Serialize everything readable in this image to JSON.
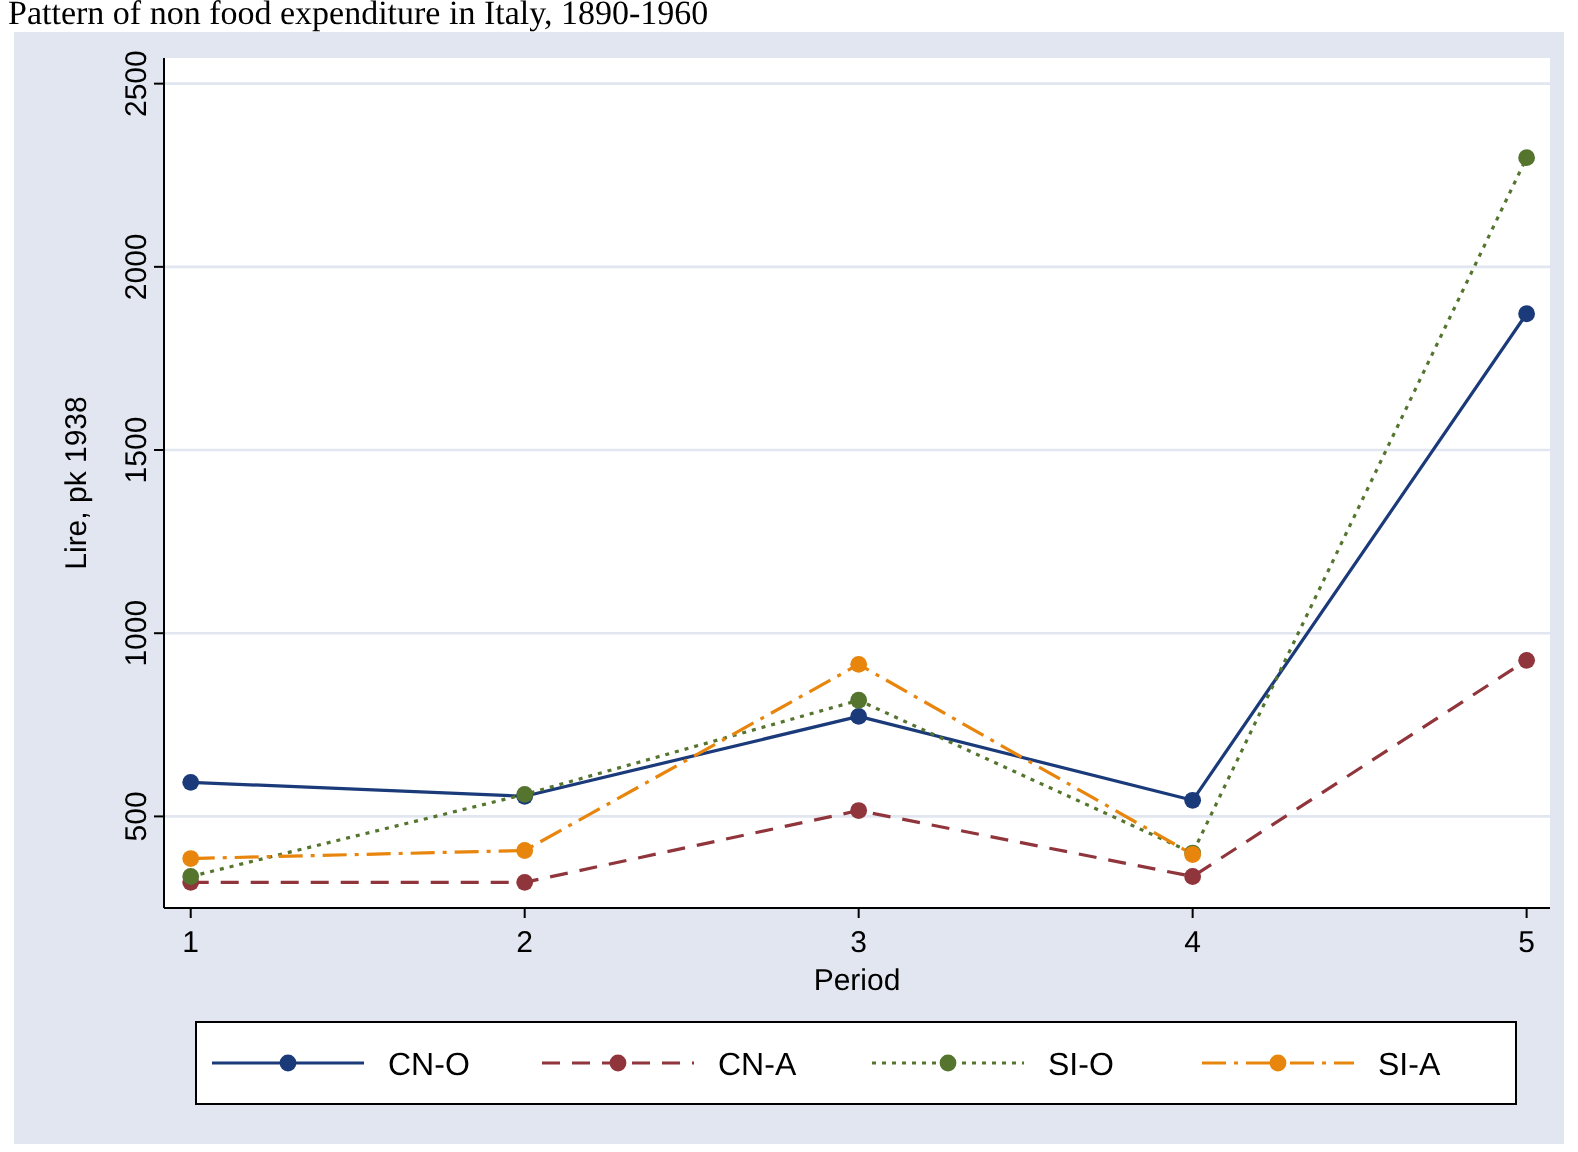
{
  "chart_data": {
    "type": "line",
    "title": "Pattern of non food expenditure in Italy, 1890-1960",
    "xlabel": "Period",
    "ylabel": "Lire, pk 1938",
    "x": [
      1,
      2,
      3,
      4,
      5
    ],
    "xlim": [
      0.92,
      5.07
    ],
    "xticks": [
      1,
      2,
      3,
      4,
      5
    ],
    "ylim": [
      250,
      2570
    ],
    "yticks": [
      500,
      1000,
      1500,
      2000,
      2500
    ],
    "grid": "y",
    "legend": "bottom",
    "marker": "circle",
    "series": [
      {
        "name": "CN-O",
        "color": "#1a3a7a",
        "line_style": "solid",
        "values": [
          593,
          555,
          773,
          544,
          1872
        ]
      },
      {
        "name": "CN-A",
        "color": "#90353b",
        "line_style": "dashed",
        "values": [
          320,
          320,
          516,
          336,
          926
        ]
      },
      {
        "name": "SI-O",
        "color": "#55752f",
        "line_style": "dotted",
        "values": [
          336,
          560,
          817,
          400,
          2298
        ]
      },
      {
        "name": "SI-A",
        "color": "#e8850c",
        "line_style": "dashdot",
        "values": [
          385,
          407,
          915,
          396,
          null
        ]
      }
    ]
  }
}
